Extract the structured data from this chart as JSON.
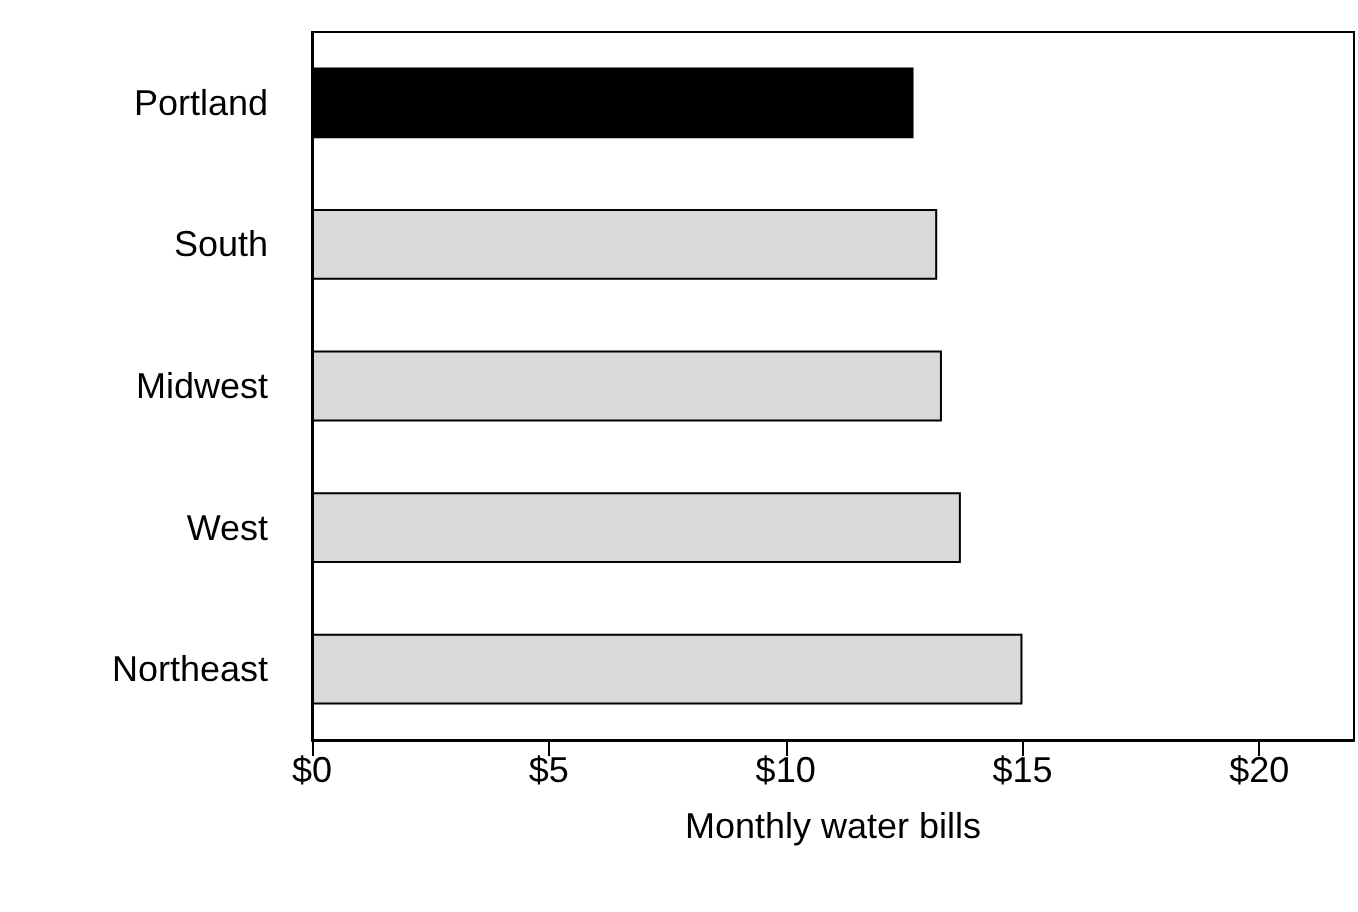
{
  "chart_data": {
    "type": "bar",
    "orientation": "horizontal",
    "xlabel": "Monthly water bills",
    "categories": [
      "Portland",
      "South",
      "Midwest",
      "West",
      "Northeast"
    ],
    "values": [
      12.7,
      13.2,
      13.3,
      13.7,
      15.0
    ],
    "colors": [
      "#000000",
      "#d9d9d9",
      "#d9d9d9",
      "#d9d9d9",
      "#d9d9d9"
    ],
    "xlim": [
      0,
      22
    ],
    "xticks": [
      {
        "value": 0,
        "label": "$0"
      },
      {
        "value": 5,
        "label": "$5"
      },
      {
        "value": 10,
        "label": "$10"
      },
      {
        "value": 15,
        "label": "$15"
      },
      {
        "value": 20,
        "label": "$20"
      }
    ],
    "grid": false
  }
}
